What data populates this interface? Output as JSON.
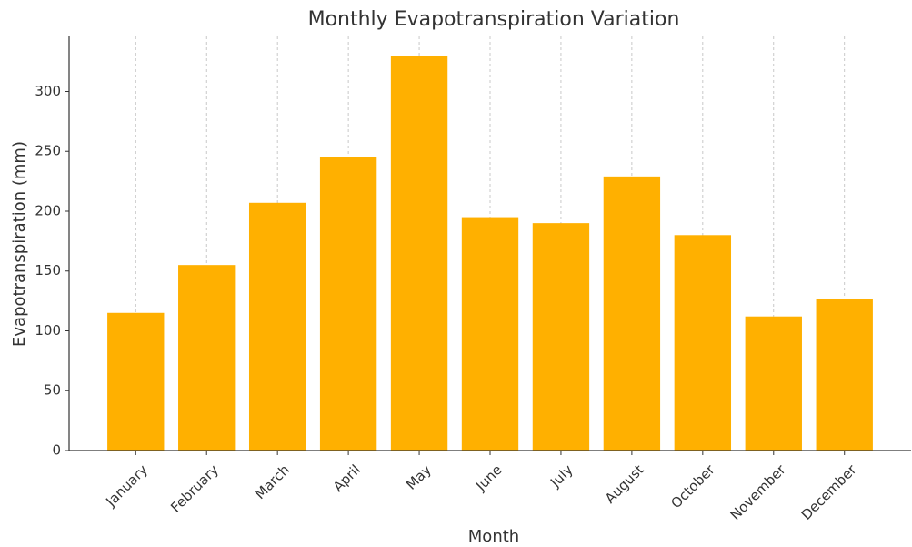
{
  "chart_data": {
    "type": "bar",
    "title": "Monthly Evapotranspiration Variation",
    "x_label": "Month",
    "y_label": "Evapotranspiration (mm)",
    "categories": [
      "January",
      "February",
      "March",
      "April",
      "May",
      "June",
      "July",
      "August",
      "October",
      "November",
      "December"
    ],
    "values": [
      115,
      155,
      207,
      245,
      330,
      195,
      190,
      229,
      180,
      112,
      127
    ],
    "color": "#ffb000",
    "ylim": [
      0,
      346
    ],
    "yticks": [
      0,
      50,
      100,
      150,
      200,
      250,
      300
    ],
    "grid": "x"
  }
}
